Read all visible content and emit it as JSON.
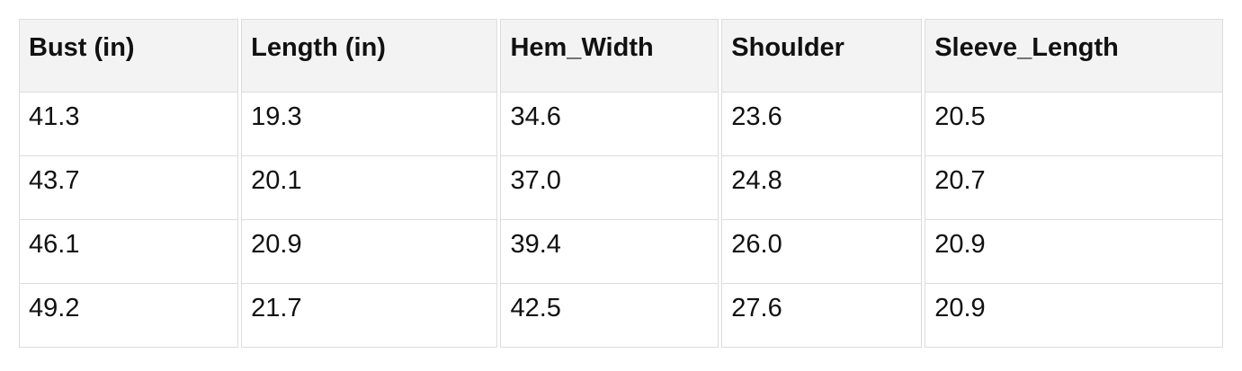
{
  "chart_data": {
    "type": "table",
    "columns": [
      "Bust (in)",
      "Length (in)",
      "Hem_Width",
      "Shoulder",
      "Sleeve_Length"
    ],
    "rows": [
      [
        "41.3",
        "19.3",
        "34.6",
        "23.6",
        "20.5"
      ],
      [
        "43.7",
        "20.1",
        "37.0",
        "24.8",
        "20.7"
      ],
      [
        "46.1",
        "20.9",
        "39.4",
        "26.0",
        "20.9"
      ],
      [
        "49.2",
        "21.7",
        "42.5",
        "27.6",
        "20.9"
      ]
    ],
    "layout": {
      "header_background": "#f3f3f3",
      "cell_background": "#ffffff",
      "border_color": "#dcdcdc",
      "text_color": "#111111",
      "grid": "on"
    }
  }
}
